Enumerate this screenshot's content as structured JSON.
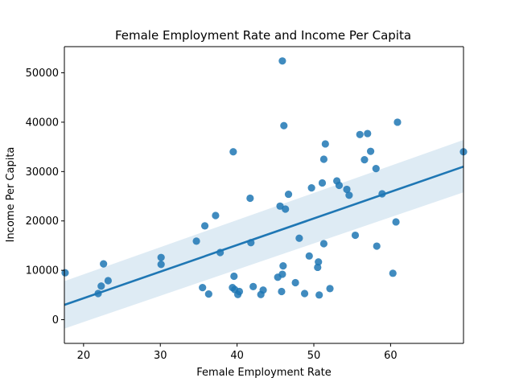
{
  "chart_data": {
    "type": "scatter",
    "title": "Female Employment Rate and Income Per Capita",
    "xlabel": "Female Employment Rate",
    "ylabel": "Income Per Capita",
    "xlim": [
      17.5,
      69.5
    ],
    "ylim": [
      -4800,
      55300
    ],
    "x_ticks": [
      20,
      30,
      40,
      50,
      60
    ],
    "y_ticks": [
      0,
      10000,
      20000,
      30000,
      40000,
      50000
    ],
    "x_tick_labels": [
      "20",
      "30",
      "40",
      "50",
      "60"
    ],
    "y_tick_labels": [
      "0",
      "10000",
      "20000",
      "30000",
      "40000",
      "50000"
    ],
    "grid": false,
    "legend": "none",
    "colors": {
      "points": "#1f77b4",
      "line": "#1f77b4",
      "band": "#1f77b4"
    },
    "series": [
      {
        "points": [
          [
            17.6,
            9500
          ],
          [
            21.9,
            5300
          ],
          [
            22.3,
            6800
          ],
          [
            22.6,
            11300
          ],
          [
            23.2,
            7900
          ],
          [
            30.1,
            12600
          ],
          [
            30.1,
            11200
          ],
          [
            34.7,
            15900
          ],
          [
            35.5,
            6500
          ],
          [
            35.8,
            19000
          ],
          [
            36.3,
            5200
          ],
          [
            37.2,
            21100
          ],
          [
            37.8,
            13600
          ],
          [
            39.4,
            6500
          ],
          [
            39.5,
            34000
          ],
          [
            39.6,
            8800
          ],
          [
            39.7,
            6100
          ],
          [
            40.1,
            5100
          ],
          [
            40.3,
            5700
          ],
          [
            41.7,
            24600
          ],
          [
            41.8,
            15600
          ],
          [
            42.1,
            6700
          ],
          [
            43.1,
            5100
          ],
          [
            43.4,
            6000
          ],
          [
            45.3,
            8600
          ],
          [
            45.6,
            23000
          ],
          [
            45.8,
            5700
          ],
          [
            45.9,
            52400
          ],
          [
            45.9,
            9200
          ],
          [
            46.0,
            10900
          ],
          [
            46.1,
            39300
          ],
          [
            46.3,
            22400
          ],
          [
            46.7,
            25400
          ],
          [
            47.6,
            7500
          ],
          [
            48.1,
            16500
          ],
          [
            48.8,
            5300
          ],
          [
            49.4,
            12900
          ],
          [
            49.7,
            26700
          ],
          [
            50.5,
            10600
          ],
          [
            50.6,
            11700
          ],
          [
            50.7,
            5000
          ],
          [
            51.1,
            27700
          ],
          [
            51.3,
            32500
          ],
          [
            51.3,
            15400
          ],
          [
            51.5,
            35600
          ],
          [
            52.1,
            6300
          ],
          [
            53.0,
            28100
          ],
          [
            53.3,
            27200
          ],
          [
            54.3,
            26400
          ],
          [
            54.6,
            25200
          ],
          [
            55.4,
            17100
          ],
          [
            56.0,
            37500
          ],
          [
            56.6,
            32400
          ],
          [
            57.0,
            37700
          ],
          [
            57.4,
            34100
          ],
          [
            58.1,
            30600
          ],
          [
            58.2,
            14900
          ],
          [
            58.9,
            25500
          ],
          [
            60.3,
            9400
          ],
          [
            60.7,
            19800
          ],
          [
            60.9,
            40000
          ],
          [
            69.5,
            34000
          ]
        ]
      }
    ],
    "regression": {
      "x": [
        17.5,
        69.5
      ],
      "y": [
        3000,
        31000
      ],
      "ci_lower": [
        -1800,
        25800
      ],
      "ci_upper": [
        7800,
        36400
      ]
    }
  }
}
